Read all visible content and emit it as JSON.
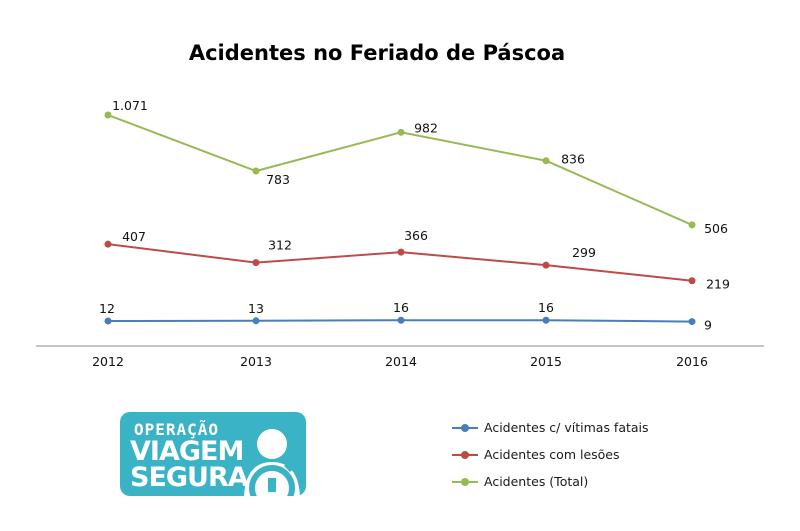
{
  "chart_data": {
    "type": "line",
    "title": "Acidentes no Feriado de Páscoa",
    "categories": [
      "2012",
      "2013",
      "2014",
      "2015",
      "2016"
    ],
    "series": [
      {
        "name": "Acidentes c/ vítimas fatais",
        "color": "#4a7ebb",
        "values": [
          12,
          13,
          16,
          16,
          9
        ],
        "labels": [
          "12",
          "13",
          "16",
          "16",
          "9"
        ]
      },
      {
        "name": "Acidentes com lesões",
        "color": "#be4b48",
        "values": [
          407,
          312,
          366,
          299,
          219
        ],
        "labels": [
          "407",
          "312",
          "366",
          "299",
          "219"
        ]
      },
      {
        "name": "Acidentes (Total)",
        "color": "#98b954",
        "values": [
          1071,
          783,
          982,
          836,
          506
        ],
        "labels": [
          "1.071",
          "783",
          "982",
          "836",
          "506"
        ]
      }
    ],
    "grid": false,
    "legend_position": "bottom-right"
  },
  "logo": {
    "line1": "OPERAÇÃO",
    "line2": "VIAGEM",
    "line3": "SEGURA",
    "icon": "driver-steering-wheel-icon"
  }
}
